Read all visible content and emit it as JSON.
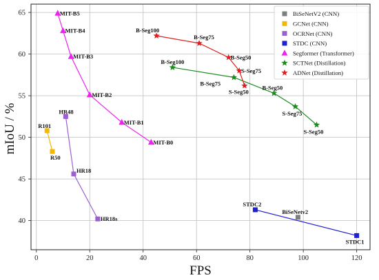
{
  "chart_data": {
    "type": "scatter",
    "title": "",
    "xlabel": "FPS",
    "ylabel": "mIoU / %",
    "xlim": [
      -2,
      125
    ],
    "ylim": [
      36.5,
      66
    ],
    "x_ticks": [
      "0",
      "20",
      "40",
      "60",
      "80",
      "100",
      "120"
    ],
    "y_ticks": [
      "40",
      "45",
      "50",
      "55",
      "60",
      "65"
    ],
    "x_tick_values": [
      0,
      20,
      40,
      60,
      80,
      100,
      120
    ],
    "y_tick_values": [
      40,
      45,
      50,
      55,
      60,
      65
    ],
    "grid": true,
    "legend_position": "top-right",
    "series": [
      {
        "name": "BiSeNetV2 (CNN)",
        "color": "#7f7f7f",
        "marker": "square",
        "connect": false,
        "points": [
          {
            "x": 98,
            "y": 40.4,
            "label": "BiSeNetv2"
          }
        ]
      },
      {
        "name": "GCNet (CNN)",
        "color": "#f5b800",
        "marker": "square",
        "connect": true,
        "points": [
          {
            "x": 4,
            "y": 50.8,
            "label": "R101"
          },
          {
            "x": 6,
            "y": 48.3,
            "label": "R50"
          }
        ]
      },
      {
        "name": "OCRNet (CNN)",
        "color": "#9b5fcf",
        "marker": "square",
        "connect": true,
        "points": [
          {
            "x": 11,
            "y": 52.5,
            "label": "HR48"
          },
          {
            "x": 14,
            "y": 45.6,
            "label": "HR18"
          },
          {
            "x": 23,
            "y": 40.2,
            "label": "HR18s"
          }
        ]
      },
      {
        "name": "STDC (CNN)",
        "color": "#1f1fd6",
        "marker": "square",
        "connect": true,
        "points": [
          {
            "x": 82,
            "y": 41.3,
            "label": "STDC2"
          },
          {
            "x": 120,
            "y": 38.2,
            "label": "STDC1"
          }
        ]
      },
      {
        "name": "Segformer (Transformer)",
        "color": "#ee22ee",
        "marker": "triangle",
        "connect": true,
        "points": [
          {
            "x": 8,
            "y": 64.9,
            "label": "MIT-B5"
          },
          {
            "x": 10,
            "y": 62.8,
            "label": "MIT-B4"
          },
          {
            "x": 13,
            "y": 59.7,
            "label": "MIT-B3"
          },
          {
            "x": 20,
            "y": 55.1,
            "label": "MIT-B2"
          },
          {
            "x": 32,
            "y": 51.8,
            "label": "MIT-B1"
          },
          {
            "x": 43,
            "y": 49.4,
            "label": "MIT-B0"
          }
        ]
      },
      {
        "name": "SCTNet (Distillation)",
        "color": "#1a8a1a",
        "marker": "star",
        "connect": true,
        "points": [
          {
            "x": 51,
            "y": 58.4,
            "label": "B-Seg100"
          },
          {
            "x": 74,
            "y": 57.2,
            "label": "B-Seg75"
          },
          {
            "x": 89,
            "y": 55.3,
            "label": "B-Seg50"
          },
          {
            "x": 97,
            "y": 53.7,
            "label": "S-Seg75"
          },
          {
            "x": 105,
            "y": 51.5,
            "label": "S-Seg50"
          }
        ]
      },
      {
        "name": "ADNet (Distillation)",
        "color": "#e11d1d",
        "marker": "star",
        "connect": true,
        "points": [
          {
            "x": 45,
            "y": 62.2,
            "label": "B-Seg100"
          },
          {
            "x": 61,
            "y": 61.3,
            "label": "B-Seg75"
          },
          {
            "x": 72,
            "y": 59.6,
            "label": "B-Seg50"
          },
          {
            "x": 76,
            "y": 58.0,
            "label": "S-Seg75"
          },
          {
            "x": 78,
            "y": 56.2,
            "label": "S-Seg50"
          }
        ]
      }
    ]
  }
}
